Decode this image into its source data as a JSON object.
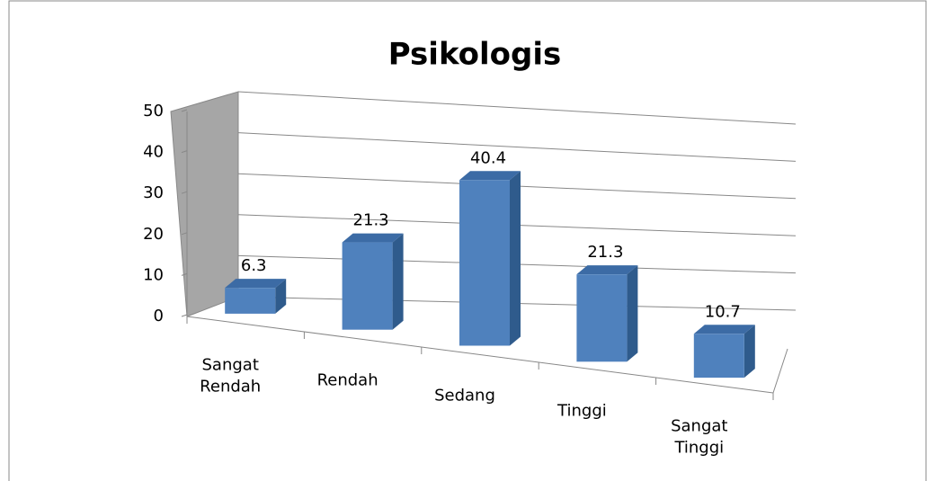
{
  "chart_data": {
    "type": "bar3d",
    "title": "Psikologis",
    "categories": [
      "Sangat Rendah",
      "Rendah",
      "Sedang",
      "Tinggi",
      "Sangat Tinggi"
    ],
    "values": [
      6.3,
      21.3,
      40.4,
      21.3,
      10.7
    ],
    "color": "#4f81bd",
    "ylim": [
      0,
      50
    ],
    "yticks": [
      0,
      10,
      20,
      30,
      40,
      50
    ],
    "grid": true
  }
}
